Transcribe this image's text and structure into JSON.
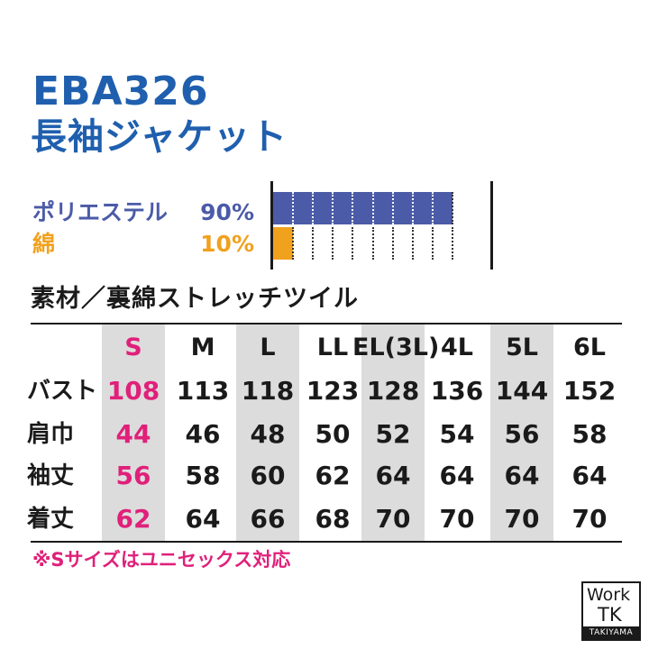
{
  "product": {
    "code": "EBA326",
    "name": "長袖ジャケット"
  },
  "materials": [
    {
      "name": "ポリエステル",
      "percent": "90%",
      "value": 90,
      "color": "#4b5ba8"
    },
    {
      "name": "綿",
      "percent": "10%",
      "value": 10,
      "color": "#f0a11e"
    }
  ],
  "material_desc": "素材／裏綿ストレッチツイル",
  "size_table": {
    "headers": [
      "S",
      "M",
      "L",
      "LL",
      "EL(3L)",
      "4L",
      "5L",
      "6L"
    ],
    "rows": [
      {
        "label": "バスト",
        "values": [
          "108",
          "113",
          "118",
          "123",
          "128",
          "136",
          "144",
          "152"
        ]
      },
      {
        "label": "肩巾",
        "values": [
          "44",
          "46",
          "48",
          "50",
          "52",
          "54",
          "56",
          "58"
        ]
      },
      {
        "label": "袖丈",
        "values": [
          "56",
          "58",
          "60",
          "62",
          "64",
          "64",
          "64",
          "64"
        ]
      },
      {
        "label": "着丈",
        "values": [
          "62",
          "64",
          "66",
          "68",
          "70",
          "70",
          "70",
          "70"
        ]
      }
    ]
  },
  "note": "※Sサイズはユニセックス対応",
  "logo": {
    "line1": "Work",
    "line2": "TK",
    "line3": "TAKIYAMA"
  }
}
